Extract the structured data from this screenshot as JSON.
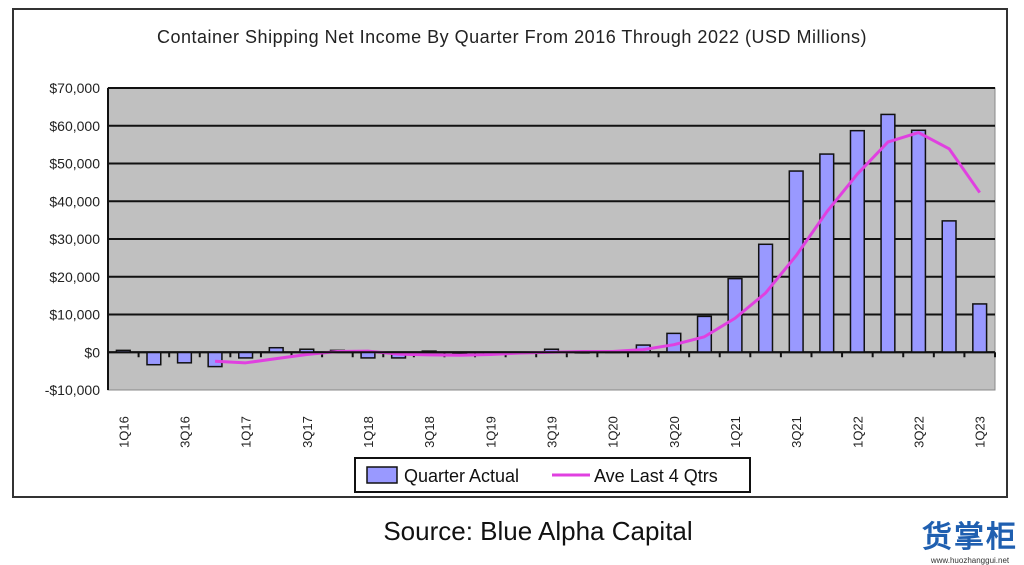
{
  "chart_data": {
    "type": "bar",
    "title": "Container Shipping Net Income By Quarter From 2016 Through 2022 (USD Millions)",
    "xlabel": "",
    "ylabel": "",
    "ylim": [
      -10000,
      70000
    ],
    "yticks": [
      -10000,
      0,
      10000,
      20000,
      30000,
      40000,
      50000,
      60000,
      70000
    ],
    "ytick_labels": [
      "-$10,000",
      "$0",
      "$10,000",
      "$20,000",
      "$30,000",
      "$40,000",
      "$50,000",
      "$60,000",
      "$70,000"
    ],
    "categories": [
      "1Q16",
      "2Q16",
      "3Q16",
      "4Q16",
      "1Q17",
      "2Q17",
      "3Q17",
      "4Q17",
      "1Q18",
      "2Q18",
      "3Q18",
      "4Q18",
      "1Q19",
      "2Q19",
      "3Q19",
      "4Q19",
      "1Q20",
      "2Q20",
      "3Q20",
      "4Q20",
      "1Q21",
      "2Q21",
      "3Q21",
      "4Q21",
      "1Q22",
      "2Q22",
      "3Q22",
      "4Q22",
      "1Q23"
    ],
    "xtick_labels": [
      "1Q16",
      "3Q16",
      "1Q17",
      "3Q17",
      "1Q18",
      "3Q18",
      "1Q19",
      "3Q19",
      "1Q20",
      "3Q20",
      "1Q21",
      "3Q21",
      "1Q22",
      "3Q22",
      "1Q23"
    ],
    "grid": true,
    "legend": "bottom-center",
    "series": [
      {
        "name": "Quarter Actual",
        "type": "bar",
        "color": "#9999ff",
        "values": [
          500,
          -3300,
          -2800,
          -3800,
          -1500,
          1200,
          800,
          500,
          -1500,
          -1500,
          300,
          -400,
          -500,
          -200,
          800,
          100,
          200,
          1900,
          5000,
          9500,
          19500,
          28600,
          48000,
          52500,
          58700,
          63000,
          58800,
          34800,
          12800
        ]
      },
      {
        "name": "Ave Last 4 Qtrs",
        "type": "line",
        "color": "#e040e0",
        "values": [
          null,
          null,
          null,
          -2400,
          -2800,
          -1700,
          -600,
          200,
          300,
          -500,
          -700,
          -800,
          -600,
          -200,
          0,
          200,
          200,
          700,
          2000,
          4100,
          9000,
          15700,
          25600,
          37200,
          47200,
          55700,
          58200,
          53900,
          42300
        ]
      }
    ]
  },
  "source": "Source: Blue Alpha Capital",
  "watermark": {
    "text": "货掌柜",
    "url": "www.huozhanggui.net"
  }
}
